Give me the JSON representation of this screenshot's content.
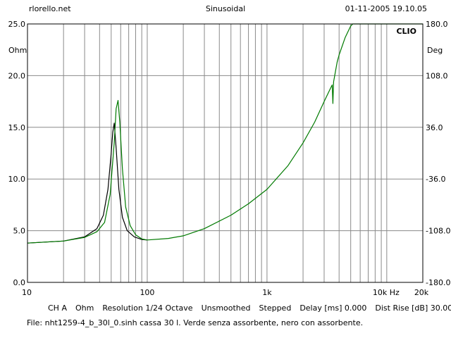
{
  "header": {
    "site": "rlorello.net",
    "mode": "Sinusoidal",
    "datetime": "01-11-2005 19.10.05"
  },
  "chart_data": {
    "type": "line",
    "brand": "CLIO",
    "x_scale": "log",
    "xlim": [
      10,
      20000
    ],
    "xtick_labels": [
      {
        "value": 10,
        "label": "10"
      },
      {
        "value": 100,
        "label": "100"
      },
      {
        "value": 1000,
        "label": "1k"
      },
      {
        "value": 10000,
        "label": "10k Hz"
      },
      {
        "value": 20000,
        "label": "20k"
      }
    ],
    "y_left": {
      "unit": "Ohm",
      "ylim": [
        0,
        25
      ],
      "ticks": [
        {
          "value": 25,
          "label": "25.0"
        },
        {
          "value": 20,
          "label": "20.0"
        },
        {
          "value": 15,
          "label": "15.0"
        },
        {
          "value": 10,
          "label": "10.0"
        },
        {
          "value": 5,
          "label": "5.0"
        },
        {
          "value": 0,
          "label": "0.0"
        }
      ]
    },
    "y_right": {
      "unit": "Deg",
      "ylim": [
        -180,
        180
      ],
      "ticks": [
        "180.0",
        "108.0",
        "36.0",
        "-36.0",
        "-108.0",
        "-180.0"
      ]
    },
    "grid": true,
    "series": [
      {
        "color": "#000000",
        "x": [
          10,
          20,
          30,
          38,
          43,
          47,
          50,
          51.5,
          53,
          55,
          58,
          62,
          68,
          78,
          90,
          100
        ],
        "y": [
          3.8,
          4.0,
          4.4,
          5.2,
          6.5,
          9.0,
          12.5,
          14.5,
          15.4,
          13.0,
          9.0,
          6.3,
          5.0,
          4.4,
          4.15,
          4.1
        ]
      },
      {
        "color": "#007a00",
        "x": [
          10,
          20,
          30,
          38,
          44,
          49,
          53,
          55,
          57,
          59,
          62,
          66,
          72,
          80,
          90,
          100,
          150,
          200,
          300,
          500,
          700,
          1000,
          1500,
          2000,
          2500,
          3000,
          3400,
          3500,
          3550,
          3600,
          3700,
          3850,
          4000,
          4500,
          5000,
          5200,
          6000,
          8000,
          10000,
          15000,
          20000
        ],
        "y": [
          3.8,
          4.0,
          4.35,
          4.9,
          5.8,
          8.5,
          13.5,
          16.8,
          17.6,
          15.5,
          11.0,
          7.3,
          5.5,
          4.6,
          4.2,
          4.1,
          4.25,
          4.5,
          5.2,
          6.5,
          7.6,
          9.0,
          11.3,
          13.5,
          15.5,
          17.5,
          18.8,
          19.1,
          17.3,
          19.4,
          20.2,
          21.3,
          22.0,
          23.7,
          24.8,
          25.0,
          25.0,
          25.0,
          25.0,
          25.0,
          25.0
        ]
      }
    ]
  },
  "footer": {
    "channel": "CH A",
    "unit": "Ohm",
    "resolution": "Resolution 1/24 Octave",
    "smoothing": "Unsmoothed",
    "stepping": "Stepped",
    "delay": "Delay [ms] 0.000",
    "dist_rise": "Dist Rise [dB] 30.00",
    "file_note": "File: nht1259-4_b_30l_0.sinh cassa 30 l. Verde senza assorbente, nero con assorbente."
  }
}
